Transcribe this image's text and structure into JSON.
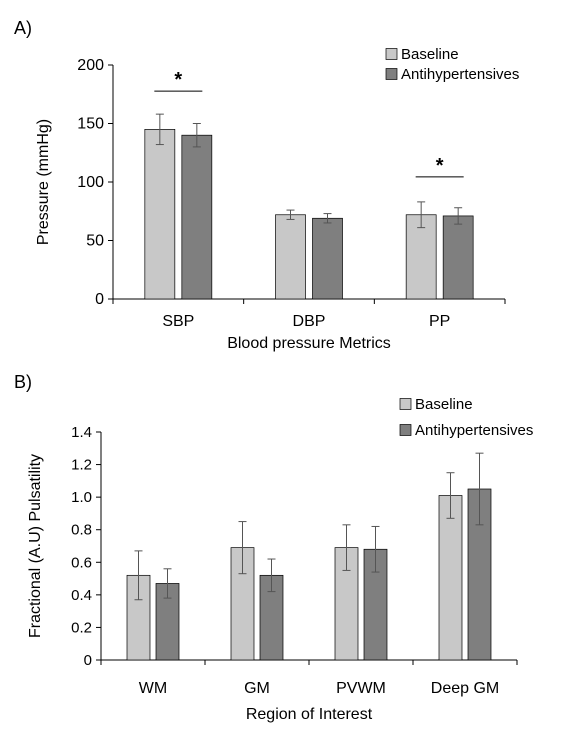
{
  "colors": {
    "baseline": "#c8c8c8",
    "antihypertensives": "#7f7f7f",
    "axis": "#000000",
    "error": "#555555"
  },
  "chart_data": [
    {
      "panel_label": "A)",
      "type": "bar",
      "xlabel": "Blood pressure Metrics",
      "ylabel": "Pressure (mmHg)",
      "ylim": [
        0,
        200
      ],
      "yticks": [
        "0",
        "50",
        "100",
        "150",
        "200"
      ],
      "ytick_values": [
        0,
        50,
        100,
        150,
        200
      ],
      "grid": false,
      "legend_position": "top-right",
      "categories": [
        "SBP",
        "DBP",
        "PP"
      ],
      "series": [
        {
          "name": "Baseline",
          "values": [
            145,
            72,
            72
          ],
          "errors": [
            13,
            4,
            11
          ]
        },
        {
          "name": "Antihypertensives",
          "values": [
            140,
            69,
            71
          ],
          "errors": [
            10,
            4,
            7
          ]
        }
      ],
      "significance": [
        {
          "category_index": 0,
          "label": "*"
        },
        {
          "category_index": 2,
          "label": "*"
        }
      ]
    },
    {
      "panel_label": "B)",
      "type": "bar",
      "xlabel": "Region of Interest",
      "ylabel": "Fractional (A.U) Pulsatility",
      "ylim": [
        0,
        1.4
      ],
      "yticks": [
        "0",
        "0.2",
        "0.4",
        "0.6",
        "0.8",
        "1.0",
        "1.2",
        "1.4"
      ],
      "ytick_values": [
        0,
        0.2,
        0.4,
        0.6,
        0.8,
        1.0,
        1.2,
        1.4
      ],
      "grid": false,
      "legend_position": "top-right",
      "categories": [
        "WM",
        "GM",
        "PVWM",
        "Deep GM"
      ],
      "series": [
        {
          "name": "Baseline",
          "values": [
            0.52,
            0.69,
            0.69,
            1.01
          ],
          "errors": [
            0.15,
            0.16,
            0.14,
            0.14
          ]
        },
        {
          "name": "Antihypertensives",
          "values": [
            0.47,
            0.52,
            0.68,
            1.05
          ],
          "errors": [
            0.09,
            0.1,
            0.14,
            0.22
          ]
        }
      ],
      "significance": []
    }
  ]
}
